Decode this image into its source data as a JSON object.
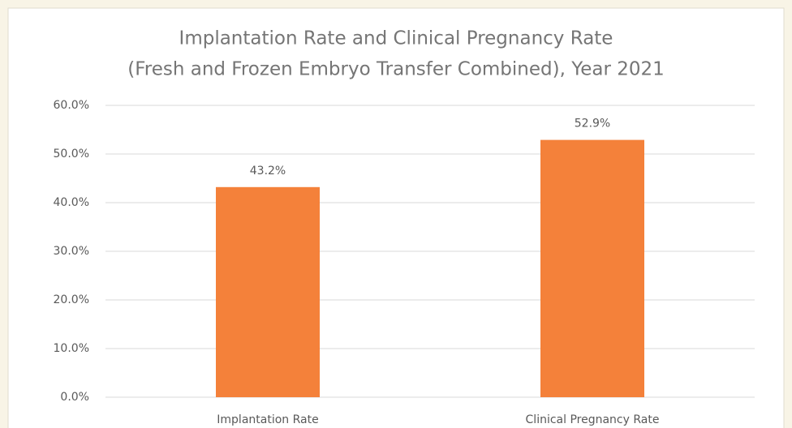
{
  "chart_data": {
    "type": "bar",
    "title": [
      "Implantation Rate and Clinical Pregnancy Rate",
      "(Fresh and Frozen Embryo Transfer Combined), Year 2021"
    ],
    "categories": [
      "Implantation Rate",
      "Clinical Pregnancy Rate"
    ],
    "values": [
      43.2,
      52.9
    ],
    "value_labels": [
      "43.2%",
      "52.9%"
    ],
    "color": "#f4813a",
    "ylim": [
      0,
      60
    ],
    "yticks": [
      {
        "value": 0,
        "label": "0.0%"
      },
      {
        "value": 10,
        "label": "10.0%"
      },
      {
        "value": 20,
        "label": "20.0%"
      },
      {
        "value": 30,
        "label": "30.0%"
      },
      {
        "value": 40,
        "label": "40.0%"
      },
      {
        "value": 50,
        "label": "50.0%"
      },
      {
        "value": 60,
        "label": "60.0%"
      }
    ],
    "grid": true
  }
}
